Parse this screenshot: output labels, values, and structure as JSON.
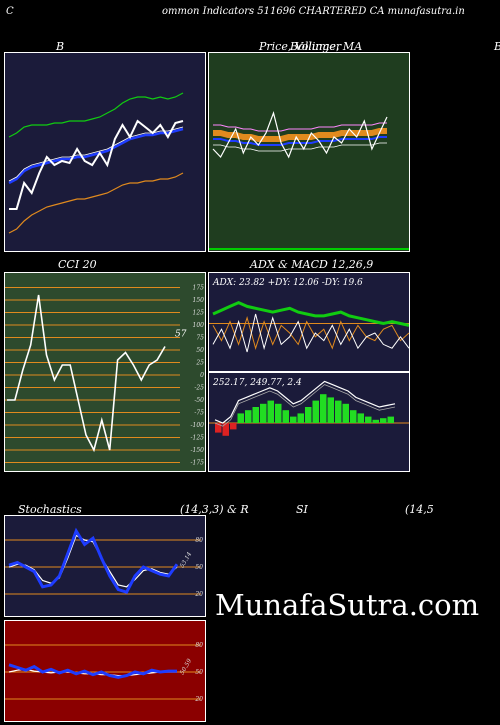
{
  "header": {
    "left_letter": "C",
    "title": "ommon  Indicators 511696  CHARTERED CA munafasutra.in"
  },
  "labels": {
    "bollinger": "B",
    "price": "Price,  Volume,  MA",
    "price_overlap": "Bollinger",
    "right_letter": "B",
    "cci": "CCI 20",
    "adx_macd": "ADX  & MACD 12,26,9",
    "stochastics": "Stochastics",
    "stoch_params": "(14,3,3) & R",
    "si": "SI",
    "si_params": "(14,5"
  },
  "watermark": "MunafaSutra.com",
  "colors": {
    "navy_bg": "#1b1b3a",
    "green_bg": "#1f3d1f",
    "cci_bg": "#2d4a2d",
    "red_bg": "#8b0000",
    "white": "#ffffff",
    "blue": "#1e3cff",
    "green_line": "#11cc11",
    "orange": "#e08a1e"
  },
  "chart_data": [
    {
      "type": "line",
      "name_label": "B",
      "series": [
        {
          "values": [
            22,
            22,
            35,
            30,
            40,
            48,
            44,
            46,
            45,
            52,
            46,
            44,
            50,
            44,
            57,
            64,
            58,
            66,
            63,
            60,
            64,
            58,
            65,
            66
          ]
        },
        {
          "values": [
            35,
            37,
            41,
            43,
            44,
            45,
            46,
            47,
            47,
            48,
            48,
            49,
            50,
            51,
            53,
            55,
            57,
            58,
            59,
            59,
            60,
            60,
            61,
            62
          ]
        },
        {
          "values": [
            58,
            60,
            63,
            64,
            64,
            64,
            65,
            65,
            66,
            66,
            66,
            67,
            68,
            70,
            72,
            75,
            77,
            78,
            78,
            77,
            78,
            77,
            78,
            80
          ]
        },
        {
          "values": [
            10,
            12,
            16,
            19,
            21,
            23,
            24,
            25,
            26,
            27,
            27,
            28,
            29,
            30,
            32,
            34,
            35,
            35,
            36,
            36,
            37,
            37,
            38,
            40
          ]
        }
      ]
    },
    {
      "type": "line",
      "name_label": "Price, Volume, MA",
      "series": [
        {
          "values": [
            52,
            48,
            55,
            62,
            50,
            58,
            54,
            60,
            70,
            55,
            48,
            58,
            52,
            60,
            56,
            50,
            58,
            55,
            62,
            58,
            66,
            52,
            60,
            68
          ]
        },
        {
          "values": [
            60,
            60,
            59,
            59,
            58,
            58,
            57,
            57,
            57,
            57,
            58,
            58,
            58,
            58,
            59,
            59,
            59,
            60,
            60,
            60,
            60,
            60,
            61,
            61
          ]
        }
      ]
    },
    {
      "type": "line",
      "name_label": "CCI 20",
      "yticks": [
        175,
        150,
        125,
        100,
        75,
        50,
        25,
        0,
        -25,
        -50,
        -75,
        -100,
        -125,
        -150,
        -175
      ],
      "last_value_label": "57",
      "series": [
        {
          "values": [
            -50,
            -50,
            10,
            60,
            160,
            40,
            -10,
            20,
            20,
            -50,
            -120,
            -150,
            -90,
            -150,
            30,
            45,
            20,
            -10,
            20,
            30,
            57
          ]
        }
      ]
    },
    {
      "type": "line",
      "name_label": "ADX",
      "readout": "ADX: 23.82  +DY: 12.06  -DY: 19.6",
      "yticks": [],
      "series": [
        {
          "values": [
            30,
            32,
            34,
            36,
            34,
            33,
            32,
            31,
            32,
            33,
            31,
            30,
            29,
            29,
            30,
            31,
            29,
            28,
            27,
            26,
            25,
            26,
            25,
            24
          ]
        },
        {
          "values": [
            14,
            22,
            12,
            26,
            10,
            30,
            12,
            28,
            14,
            18,
            26,
            12,
            20,
            16,
            24,
            14,
            22,
            12,
            18,
            20,
            14,
            12,
            18,
            12
          ]
        },
        {
          "values": [
            24,
            16,
            26,
            14,
            28,
            12,
            26,
            14,
            24,
            20,
            14,
            26,
            18,
            22,
            12,
            26,
            16,
            24,
            18,
            16,
            22,
            24,
            16,
            20
          ]
        }
      ]
    },
    {
      "type": "bar",
      "name_label": "MACD 12,26,9",
      "readout": "252.17,  249.77,  2.4",
      "series": [
        {
          "values": [
            -6,
            -8,
            -4,
            6,
            8,
            10,
            12,
            14,
            12,
            8,
            4,
            6,
            10,
            14,
            18,
            16,
            14,
            12,
            8,
            6,
            4,
            2,
            3,
            4
          ]
        }
      ]
    },
    {
      "type": "line",
      "name_label": "Stochastics",
      "yticks": [
        80,
        50,
        20
      ],
      "last_value_label": "53.14",
      "series": [
        {
          "values": [
            52,
            55,
            50,
            45,
            28,
            30,
            40,
            65,
            90,
            75,
            82,
            60,
            40,
            25,
            22,
            40,
            50,
            46,
            42,
            40,
            53
          ]
        },
        {
          "values": [
            50,
            53,
            52,
            47,
            35,
            32,
            38,
            60,
            85,
            80,
            78,
            60,
            45,
            30,
            28,
            36,
            46,
            48,
            44,
            42,
            50
          ]
        }
      ]
    },
    {
      "type": "line",
      "name_label": "SI",
      "yticks": [
        80,
        50,
        20
      ],
      "last_value_label": "50.59",
      "series": [
        {
          "values": [
            58,
            55,
            52,
            56,
            50,
            53,
            49,
            52,
            48,
            51,
            47,
            50,
            46,
            44,
            46,
            50,
            48,
            52,
            50,
            51,
            51
          ]
        },
        {
          "values": [
            50,
            52,
            53,
            51,
            50,
            49,
            50,
            50,
            49,
            48,
            48,
            47,
            47,
            46,
            46,
            47,
            48,
            49,
            50,
            50,
            50
          ]
        }
      ]
    }
  ]
}
